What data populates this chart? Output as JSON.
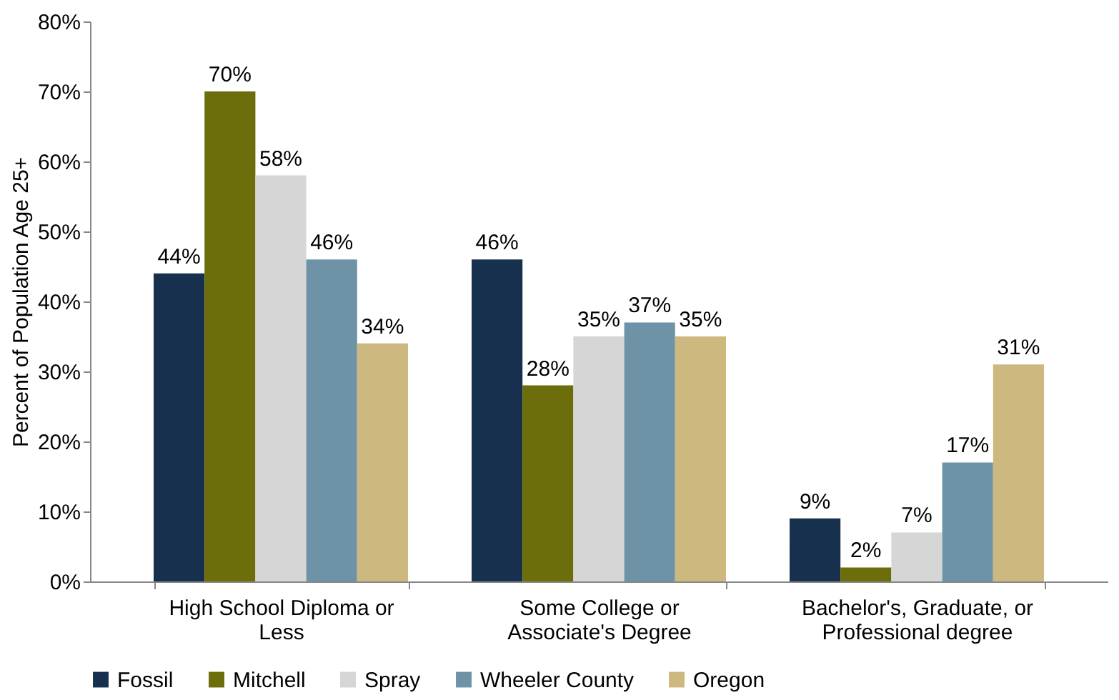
{
  "chart_data": {
    "type": "bar",
    "ylabel": "Percent of Population Age 25+",
    "categories": [
      "High School Diploma or Less",
      "Some College or Associate's Degree",
      "Bachelor's, Graduate, or Professional degree"
    ],
    "series": [
      {
        "name": "Fossil",
        "color": "#17304d",
        "values": [
          44,
          46,
          9
        ],
        "value_labels": [
          "44%",
          "46%",
          "9%"
        ]
      },
      {
        "name": "Mitchell",
        "color": "#6b6e0a",
        "values": [
          70,
          28,
          2
        ],
        "value_labels": [
          "70%",
          "28%",
          "2%"
        ]
      },
      {
        "name": "Spray",
        "color": "#d6d6d6",
        "values": [
          58,
          35,
          7
        ],
        "value_labels": [
          "58%",
          "35%",
          "7%"
        ]
      },
      {
        "name": "Wheeler County",
        "color": "#6f93a6",
        "values": [
          46,
          37,
          17
        ],
        "value_labels": [
          "46%",
          "37%",
          "17%"
        ]
      },
      {
        "name": "Oregon",
        "color": "#cdb880",
        "values": [
          34,
          35,
          31
        ],
        "value_labels": [
          "34%",
          "35%",
          "31%"
        ]
      }
    ],
    "ylim": [
      0,
      80
    ],
    "yticks": [
      {
        "value": 0,
        "label": "0%"
      },
      {
        "value": 10,
        "label": "10%"
      },
      {
        "value": 20,
        "label": "20%"
      },
      {
        "value": 30,
        "label": "30%"
      },
      {
        "value": 40,
        "label": "40%"
      },
      {
        "value": 50,
        "label": "50%"
      },
      {
        "value": 60,
        "label": "60%"
      },
      {
        "value": 70,
        "label": "70%"
      },
      {
        "value": 80,
        "label": "80%"
      }
    ],
    "grid": false,
    "legend": "bottom"
  }
}
